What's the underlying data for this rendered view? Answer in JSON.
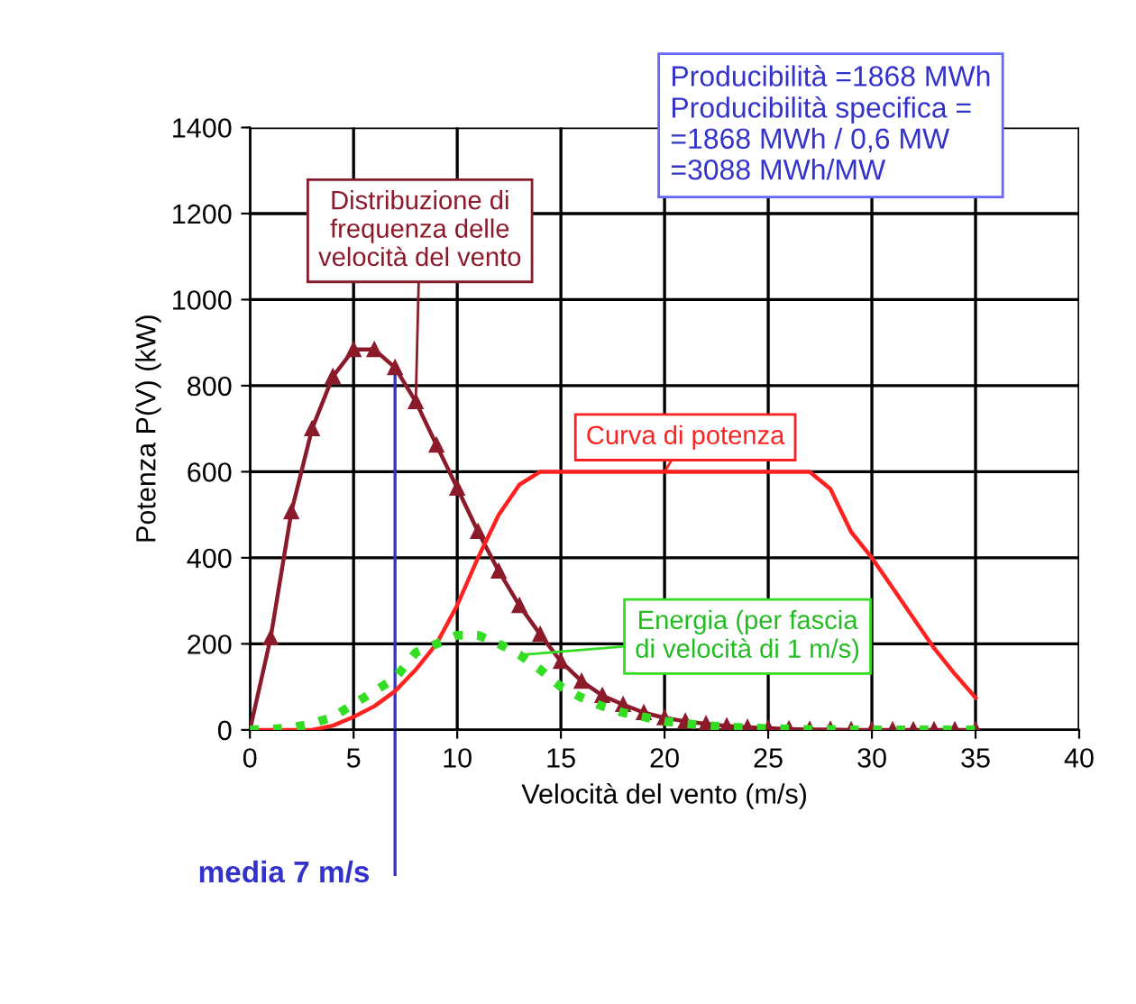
{
  "chart_data": {
    "type": "line",
    "xlabel": "Velocità del vento (m/s)",
    "ylabel": "Potenza P(V) (kW)",
    "x": [
      0,
      1,
      2,
      3,
      4,
      5,
      6,
      7,
      8,
      9,
      10,
      11,
      12,
      13,
      14,
      15,
      16,
      17,
      18,
      19,
      20,
      21,
      22,
      23,
      24,
      25,
      26,
      27,
      28,
      29,
      30,
      31,
      32,
      33,
      34,
      35
    ],
    "series": [
      {
        "color": "#8b1a2a",
        "marker": "triangle",
        "line_style": "solid",
        "values": [
          0,
          214,
          507,
          700,
          821,
          884,
          884,
          842,
          763,
          662,
          562,
          461,
          369,
          289,
          222,
          159,
          113,
          80,
          59,
          40,
          28,
          20,
          14,
          9,
          6,
          4,
          2,
          1,
          1,
          0,
          0,
          0,
          0,
          0,
          0,
          0
        ]
      },
      {
        "color": "#ff2020",
        "marker": "none",
        "line_style": "solid",
        "values": [
          0,
          0,
          0,
          0,
          10,
          30,
          55,
          90,
          140,
          200,
          290,
          400,
          500,
          570,
          600,
          600,
          600,
          600,
          600,
          600,
          600,
          600,
          600,
          600,
          600,
          600,
          600,
          600,
          560,
          460,
          400,
          330,
          260,
          190,
          130,
          75
        ]
      },
      {
        "color": "#33dd22",
        "marker": "none",
        "line_style": "dotted",
        "values": [
          0,
          2,
          5,
          15,
          30,
          60,
          90,
          120,
          180,
          200,
          220,
          220,
          200,
          175,
          140,
          100,
          75,
          55,
          40,
          30,
          20,
          15,
          10,
          7,
          5,
          3,
          2,
          1,
          1,
          0,
          0,
          0,
          0,
          0,
          0,
          0
        ]
      }
    ],
    "xlim": [
      0,
      40
    ],
    "xticks": [
      0,
      5,
      10,
      15,
      20,
      25,
      30,
      35,
      40
    ],
    "ylim": [
      0,
      1400
    ],
    "yticks": [
      0,
      200,
      400,
      600,
      800,
      1000,
      1200,
      1400
    ],
    "grid": true,
    "legend": false,
    "ref_lines": [
      {
        "axis": "x",
        "value": 7,
        "label": "media 7 m/s",
        "color": "#3333cc"
      }
    ],
    "annotations": [
      {
        "text": "Distribuzione di\nfrequenza delle\nvelocità del vento",
        "x": 8,
        "y": 763
      },
      {
        "text": "Curva di potenza",
        "x": 20,
        "y": 600
      },
      "Energia (per fascia\ndi velocità di 1 m/s)",
      "Producibilità =1868 MWh\nProducibilità specifica =\n=1868 MWh / 0,6 MW\n=3088 MWh/MW"
    ]
  }
}
